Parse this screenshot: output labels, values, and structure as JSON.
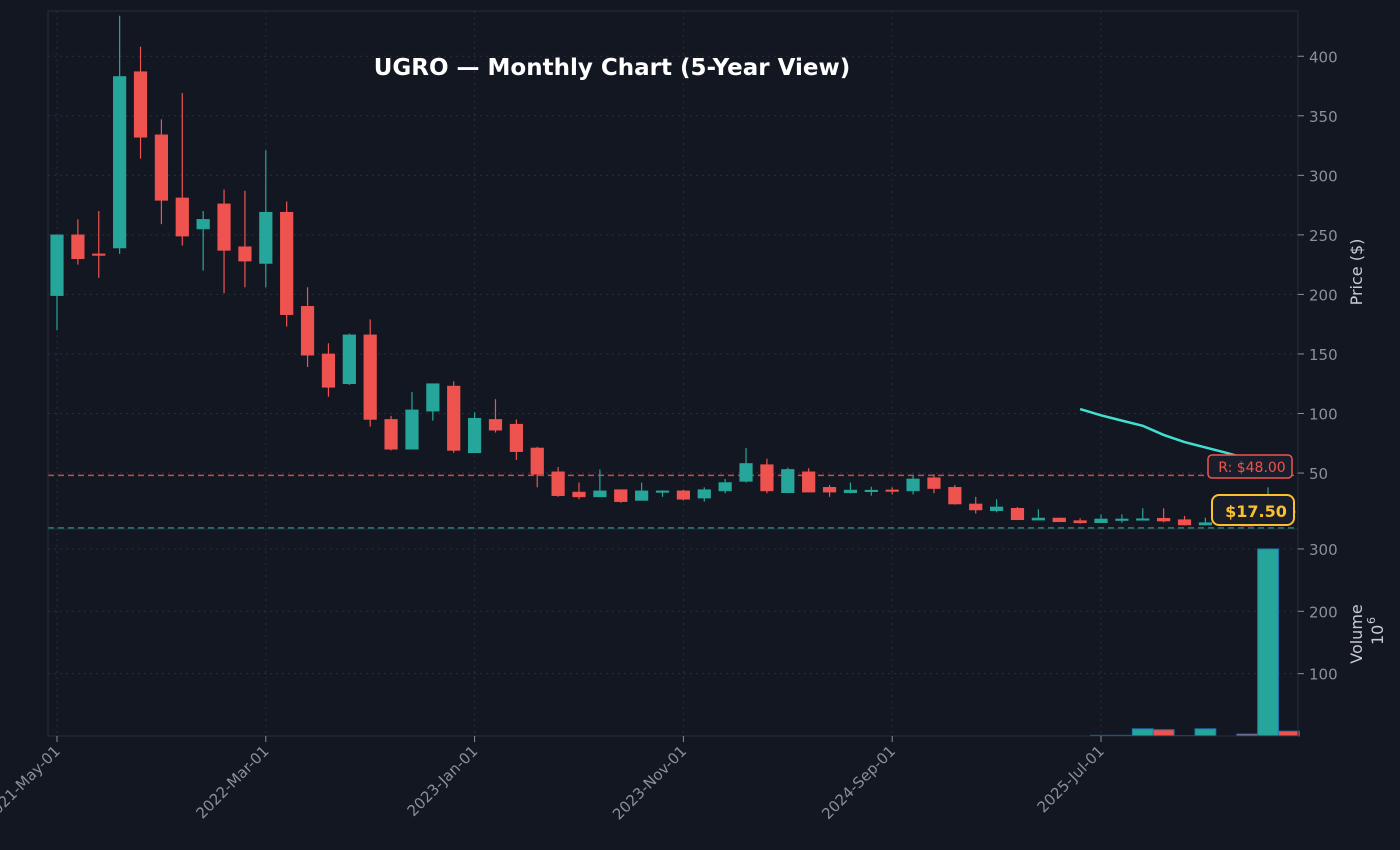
{
  "chart_data": {
    "type": "candlestick",
    "title": "UGRO — Monthly Chart (5-Year View)",
    "ylabel": "Price ($)",
    "volume_label": "Volume",
    "volume_multiplier": "10",
    "volume_multiplier_exp": "6",
    "ylim": [
      3,
      438
    ],
    "volume_ylim": [
      0,
      332
    ],
    "yticks": [
      50,
      100,
      150,
      200,
      250,
      300,
      350,
      400
    ],
    "volume_yticks": [
      100,
      200,
      300
    ],
    "xtick_labels": [
      "2021-May-01",
      "2022-Mar-01",
      "2023-Jan-01",
      "2023-Nov-01",
      "2024-Sep-01",
      "2025-Jul-01"
    ],
    "grid": true,
    "colors": {
      "background": "#131722",
      "up": "#26a69a",
      "down": "#ef5350",
      "ma": "#40e0d0",
      "resistance": "#ef5350",
      "support": "#26a69a",
      "price_label": "#fbc02d",
      "volume_edge": "#1f77b4"
    },
    "resistance": {
      "value": 48.0,
      "label": "R: $48.00"
    },
    "support": {
      "value": 3.8
    },
    "current_price": {
      "value": 17.5,
      "label": "$17.50"
    },
    "candles": [
      [
        "2021-05",
        199,
        250,
        170,
        250
      ],
      [
        "2021-06",
        250,
        263,
        225,
        230
      ],
      [
        "2021-07",
        234,
        270,
        214,
        233
      ],
      [
        "2021-08",
        239,
        434,
        234,
        383
      ],
      [
        "2021-09",
        387,
        408,
        314,
        332
      ],
      [
        "2021-10",
        334,
        347,
        259,
        279
      ],
      [
        "2021-11",
        281,
        369,
        241,
        249
      ],
      [
        "2021-12",
        255,
        270,
        220,
        263
      ],
      [
        "2022-01",
        276,
        288,
        201,
        237
      ],
      [
        "2022-02",
        240,
        287,
        206,
        228
      ],
      [
        "2022-03",
        226,
        321,
        206,
        269
      ],
      [
        "2022-04",
        269,
        278,
        173,
        183
      ],
      [
        "2022-05",
        190,
        206,
        139,
        149
      ],
      [
        "2022-06",
        150,
        159,
        114,
        122
      ],
      [
        "2022-07",
        125,
        167,
        124,
        166
      ],
      [
        "2022-08",
        166,
        179,
        89,
        95
      ],
      [
        "2022-09",
        95,
        98,
        69,
        70
      ],
      [
        "2022-10",
        70,
        118,
        70,
        103
      ],
      [
        "2022-11",
        102,
        125,
        94,
        125
      ],
      [
        "2022-12",
        123,
        127,
        67,
        69
      ],
      [
        "2023-01",
        67,
        101,
        67,
        96
      ],
      [
        "2023-02",
        95,
        112,
        84,
        86
      ],
      [
        "2023-03",
        91,
        95,
        61,
        68
      ],
      [
        "2023-04",
        71,
        72,
        38,
        49
      ],
      [
        "2023-05",
        51,
        55,
        30,
        31
      ],
      [
        "2023-06",
        34,
        42,
        28,
        30
      ],
      [
        "2023-07",
        30,
        53,
        30,
        35
      ],
      [
        "2023-08",
        36,
        36,
        25,
        26
      ],
      [
        "2023-09",
        27,
        42,
        27,
        35
      ],
      [
        "2023-10",
        34.6,
        35.5,
        30,
        35
      ],
      [
        "2023-11",
        35,
        36,
        27,
        28
      ],
      [
        "2023-12",
        29,
        38,
        26,
        36
      ],
      [
        "2024-01",
        35,
        45,
        33,
        42
      ],
      [
        "2024-02",
        43,
        71,
        42,
        58
      ],
      [
        "2024-03",
        57,
        62,
        33,
        35
      ],
      [
        "2024-04",
        33.5,
        54.5,
        33,
        53
      ],
      [
        "2024-05",
        51,
        54,
        34,
        34
      ],
      [
        "2024-06",
        38,
        40,
        30,
        34
      ],
      [
        "2024-07",
        33.5,
        42,
        33,
        35.7
      ],
      [
        "2024-08",
        35,
        38.5,
        31,
        35.6
      ],
      [
        "2024-09",
        35.8,
        38,
        32,
        35.3
      ],
      [
        "2024-10",
        35,
        47.5,
        32,
        45
      ],
      [
        "2024-11",
        46,
        49,
        33,
        37
      ],
      [
        "2024-12",
        38,
        40,
        23.5,
        24
      ],
      [
        "2025-01",
        24,
        30,
        16,
        19
      ],
      [
        "2025-02",
        18.4,
        28,
        17,
        21.5
      ],
      [
        "2025-03",
        20.4,
        21.5,
        10.5,
        10.8
      ],
      [
        "2025-04",
        10.5,
        19.6,
        10.4,
        12.2
      ],
      [
        "2025-05",
        12.2,
        12.5,
        8.9,
        9.1
      ],
      [
        "2025-06",
        10,
        12,
        7.5,
        8.2
      ],
      [
        "2025-07",
        8.3,
        15.3,
        8,
        11.4
      ],
      [
        "2025-08",
        11,
        15.3,
        8.3,
        11.4
      ],
      [
        "2025-09",
        11.2,
        20.4,
        11,
        11.6
      ],
      [
        "2025-10",
        12,
        20.4,
        8.6,
        9.7
      ],
      [
        "2025-11",
        10.8,
        14,
        6,
        6.4
      ],
      [
        "2025-12",
        6.4,
        12.5,
        6,
        8.3
      ],
      [
        "2026-01",
        7,
        8,
        6,
        6.5
      ],
      [
        "2026-02",
        6.8,
        7.5,
        5.5,
        6
      ],
      [
        "2026-03",
        6,
        38,
        5.5,
        18
      ],
      [
        "2026-04",
        18,
        19,
        17,
        17.5
      ]
    ],
    "volume": [
      0,
      0,
      0,
      0,
      0,
      0,
      0,
      0,
      0,
      0,
      0,
      0,
      0,
      0,
      0,
      0,
      0,
      0,
      0,
      0,
      0,
      0,
      0,
      0,
      0,
      0,
      0,
      0,
      0,
      0,
      0,
      0,
      0,
      0,
      0,
      0,
      0,
      0,
      0,
      0,
      0,
      0,
      0,
      0,
      0,
      0,
      0,
      0,
      0,
      0,
      1,
      1,
      11.5,
      10,
      0.5,
      11.5,
      0,
      3,
      300,
      7.7
    ],
    "moving_average": [
      null,
      null,
      null,
      null,
      null,
      null,
      null,
      null,
      null,
      null,
      null,
      null,
      null,
      null,
      null,
      null,
      null,
      null,
      null,
      null,
      null,
      null,
      null,
      null,
      null,
      null,
      null,
      null,
      null,
      null,
      null,
      null,
      null,
      null,
      null,
      null,
      null,
      null,
      null,
      null,
      null,
      null,
      null,
      null,
      null,
      null,
      null,
      null,
      null,
      103.7,
      98.5,
      94,
      89.7,
      82,
      76,
      71.5,
      67,
      62,
      57.5,
      54
    ]
  }
}
